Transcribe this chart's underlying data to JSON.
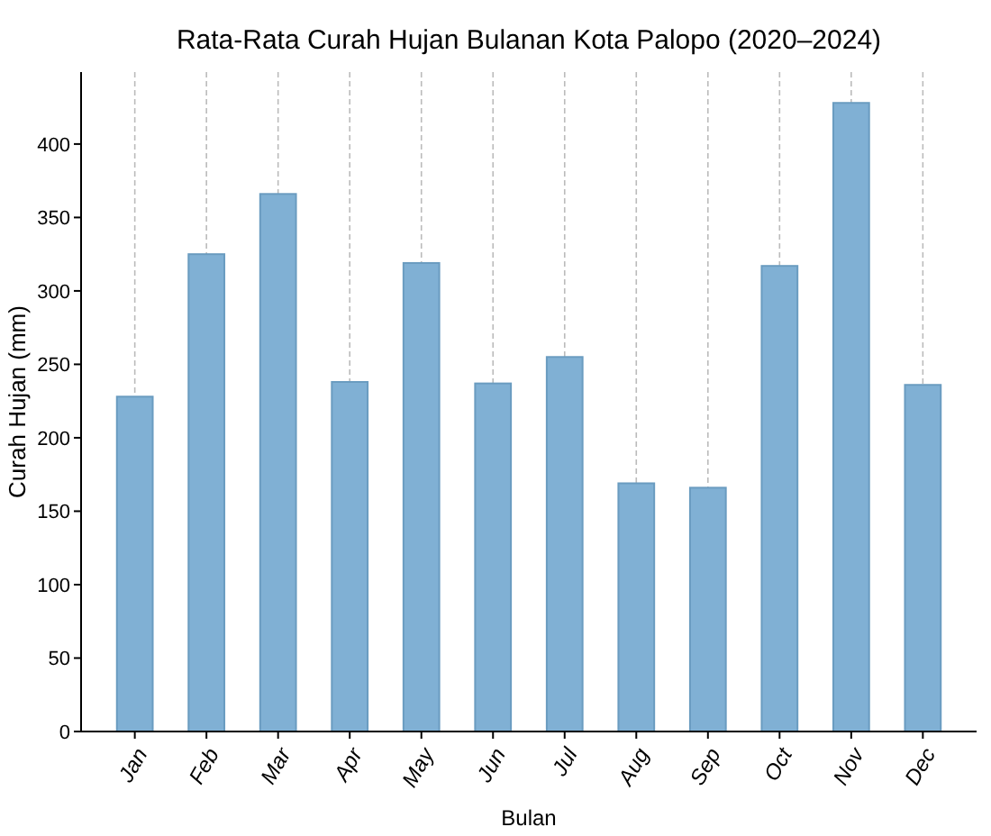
{
  "chart_data": {
    "type": "bar",
    "title": "Rata-Rata Curah Hujan Bulanan Kota Palopo (2020–2024)",
    "xlabel": "Bulan",
    "ylabel": "Curah Hujan (mm)",
    "categories": [
      "Jan",
      "Feb",
      "Mar",
      "Apr",
      "May",
      "Jun",
      "Jul",
      "Aug",
      "Sep",
      "Oct",
      "Nov",
      "Dec"
    ],
    "values": [
      228,
      325,
      366,
      238,
      319,
      237,
      255,
      169,
      166,
      317,
      428,
      236
    ],
    "color": "#80b0d4",
    "ylim": [
      0,
      449
    ],
    "yticks": [
      0,
      50,
      100,
      150,
      200,
      250,
      300,
      350,
      400
    ],
    "grid": "x"
  }
}
